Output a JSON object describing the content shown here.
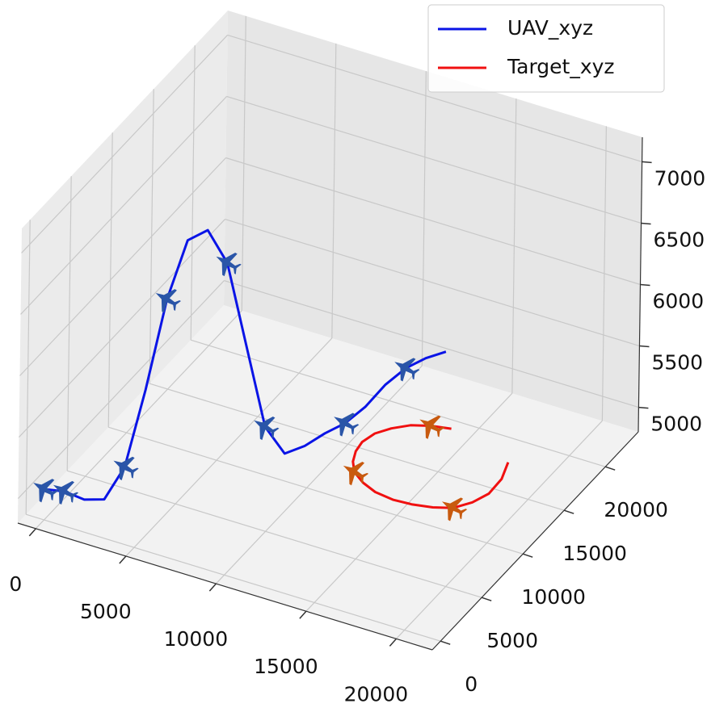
{
  "chart_data": {
    "type": "line3d",
    "series": [
      {
        "name": "UAV_xyz",
        "color": "#0a14e6",
        "x": [
          0,
          700,
          1400,
          2100,
          2800,
          3500,
          4200,
          4900,
          5600,
          6300,
          7000,
          7700,
          8400,
          9100,
          9800,
          10500,
          11200,
          11900,
          12600,
          13300,
          14000
        ],
        "y": [
          0,
          900,
          1800,
          2700,
          3600,
          4500,
          5400,
          6300,
          7200,
          8100,
          9000,
          9900,
          10800,
          11700,
          12600,
          13500,
          14400,
          15300,
          16200,
          17100,
          18000
        ],
        "z": [
          5050,
          5000,
          4900,
          4870,
          5100,
          5700,
          6400,
          6850,
          6900,
          6600,
          5900,
          5200,
          4950,
          4980,
          5050,
          5100,
          5200,
          5350,
          5450,
          5500,
          5520
        ]
      },
      {
        "name": "Target_xyz",
        "color": "#f01010",
        "x": [
          15300,
          14300,
          13400,
          12700,
          12200,
          12000,
          12100,
          12400,
          12900,
          13700,
          14600,
          15700,
          16700,
          17700,
          18600,
          19300,
          19800,
          20000,
          19900
        ],
        "y": [
          15900,
          15600,
          15100,
          14300,
          13400,
          12300,
          11300,
          10300,
          9400,
          8700,
          8200,
          8000,
          8100,
          8400,
          8900,
          9700,
          10600,
          11700,
          12700
        ],
        "z": [
          5100,
          5100,
          5100,
          5100,
          5100,
          5100,
          5100,
          5100,
          5100,
          5100,
          5100,
          5100,
          5100,
          5100,
          5100,
          5120,
          5150,
          5200,
          5260
        ]
      }
    ],
    "xlim": [
      -1000,
      22000
    ],
    "xticks": [
      0,
      5000,
      10000,
      15000,
      20000
    ],
    "ylim": [
      -1000,
      24000
    ],
    "yticks": [
      0,
      5000,
      10000,
      15000,
      20000
    ],
    "zlim": [
      4800,
      7200
    ],
    "zticks": [
      5000,
      5500,
      6000,
      6500,
      7000
    ],
    "grid": true,
    "legend": "upper right"
  }
}
